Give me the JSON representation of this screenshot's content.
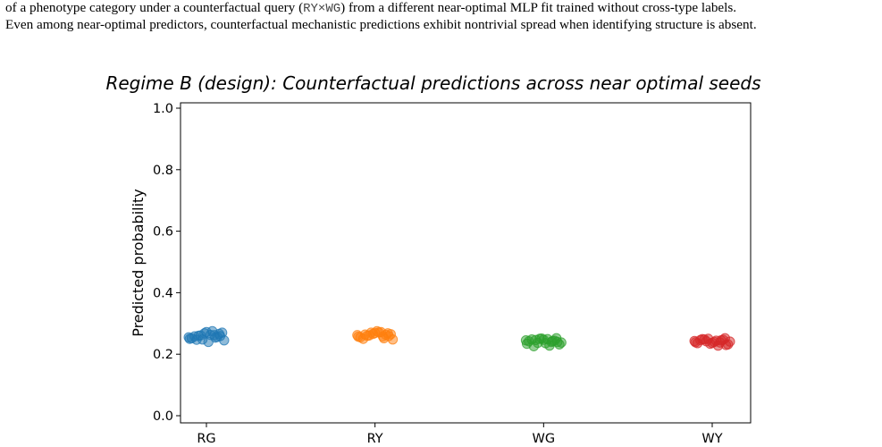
{
  "caption": {
    "line1_pre": "of a phenotype category under a counterfactual query (",
    "line1_code": "RY×WG",
    "line1_post": ") from a different near-optimal MLP fit trained without cross-type labels.",
    "line2": "Even among near-optimal predictors, counterfactual mechanistic predictions exhibit nontrivial spread when identifying structure is absent."
  },
  "chart_data": {
    "type": "scatter",
    "title": "Regime B (design): Counterfactual predictions across near optimal seeds",
    "xlabel": "",
    "ylabel": "Predicted probability",
    "ylim": [
      0.0,
      1.0
    ],
    "yticks": [
      "0.0",
      "0.2",
      "0.4",
      "0.6",
      "0.8",
      "1.0"
    ],
    "categories": [
      "RG",
      "RY",
      "WG",
      "WY"
    ],
    "grid": false,
    "series": [
      {
        "category": "RG",
        "color": "#1f77b4",
        "values": [
          0.255,
          0.262,
          0.248,
          0.27,
          0.258,
          0.24,
          0.266,
          0.252,
          0.275,
          0.26,
          0.245,
          0.268,
          0.256,
          0.25,
          0.263,
          0.259,
          0.247,
          0.272,
          0.254,
          0.261
        ]
      },
      {
        "category": "RY",
        "color": "#ff7f0e",
        "values": [
          0.262,
          0.258,
          0.27,
          0.265,
          0.25,
          0.275,
          0.268,
          0.255,
          0.272,
          0.26,
          0.248,
          0.266,
          0.263,
          0.257,
          0.271,
          0.259,
          0.264,
          0.269,
          0.252,
          0.261
        ]
      },
      {
        "category": "WG",
        "color": "#2ca02c",
        "values": [
          0.245,
          0.24,
          0.25,
          0.232,
          0.248,
          0.236,
          0.252,
          0.242,
          0.228,
          0.246,
          0.238,
          0.251,
          0.244,
          0.234,
          0.249,
          0.24,
          0.226,
          0.247,
          0.243,
          0.237
        ]
      },
      {
        "category": "WY",
        "color": "#d62728",
        "values": [
          0.243,
          0.238,
          0.25,
          0.232,
          0.246,
          0.24,
          0.252,
          0.236,
          0.228,
          0.248,
          0.241,
          0.234,
          0.247,
          0.239,
          0.244,
          0.23,
          0.249,
          0.237,
          0.245,
          0.242
        ]
      }
    ]
  }
}
